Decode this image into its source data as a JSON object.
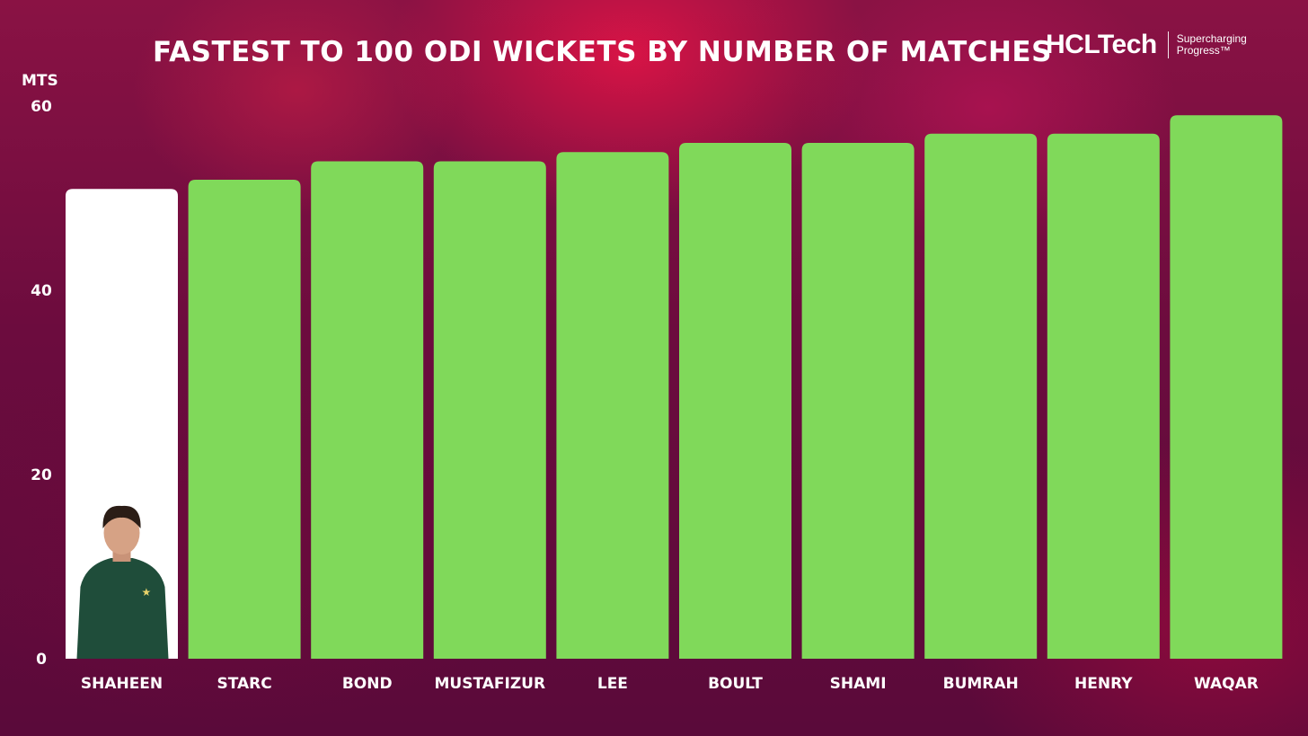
{
  "title": "FASTEST TO 100 ODI WICKETS BY NUMBER OF MATCHES",
  "brand": {
    "name": "HCLTech",
    "tagline_line1": "Supercharging",
    "tagline_line2": "Progress™"
  },
  "colors": {
    "highlight_bar": "#ffffff",
    "bar": "#80d95a",
    "text": "#ffffff"
  },
  "chart_data": {
    "type": "bar",
    "ylabel": "MTS",
    "ylim": [
      0,
      60
    ],
    "yticks": [
      0,
      20,
      40,
      60
    ],
    "grid": false,
    "categories": [
      "SHAHEEN",
      "STARC",
      "BOND",
      "MUSTAFIZUR",
      "LEE",
      "BOULT",
      "SHAMI",
      "BUMRAH",
      "HENRY",
      "WAQAR"
    ],
    "values": [
      51,
      52,
      54,
      54,
      55,
      56,
      56,
      57,
      57,
      59
    ],
    "highlight_category": "SHAHEEN"
  }
}
